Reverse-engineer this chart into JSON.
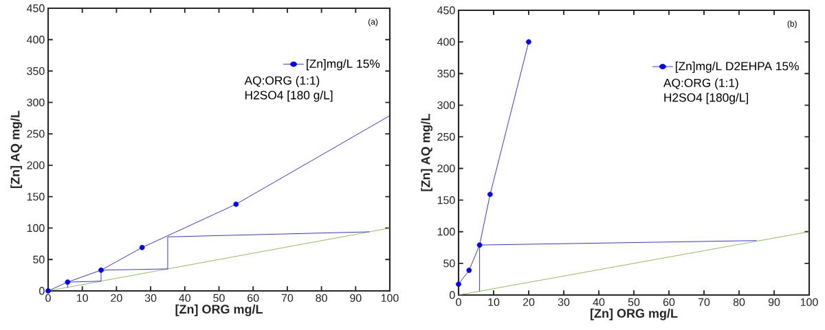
{
  "chart_data": [
    {
      "type": "line",
      "xlabel": "[Zn] ORG mg/L",
      "ylabel": "[Zn] AQ mg/L",
      "xlim": [
        0,
        100
      ],
      "ylim": [
        0,
        450
      ],
      "xticks": [
        0,
        10,
        20,
        30,
        40,
        50,
        60,
        70,
        80,
        90,
        100
      ],
      "yticks": [
        0,
        50,
        100,
        150,
        200,
        250,
        300,
        350,
        400,
        450
      ],
      "marker": "circle",
      "legend": "top right",
      "grid": false,
      "annotations": [
        "(a)",
        "AQ:ORG (1:1)",
        "H2SO4 [180 g/L]"
      ],
      "series": [
        {
          "name": "[Zn]mg/L 15%",
          "color": "#0000ff",
          "x": [
            0,
            5.7,
            15.5,
            27.5,
            55
          ],
          "values": [
            0,
            14,
            33,
            69,
            138
          ]
        },
        {
          "color": "#0000ff",
          "marker": "none",
          "x": [
            55,
            100
          ],
          "values": [
            138,
            279
          ]
        },
        {
          "color": "#77ac30",
          "marker": "none",
          "x": [
            0,
            100
          ],
          "values": [
            0,
            100
          ]
        },
        {
          "color": "#0000ff",
          "marker": "none",
          "x": [
            94,
            35,
            35,
            15.5,
            15.5,
            5.7,
            5.7
          ],
          "values": [
            94,
            86,
            35,
            33,
            15.5,
            14,
            5
          ]
        }
      ]
    },
    {
      "type": "line",
      "xlabel": "[Zn] ORG mg/L",
      "ylabel": "[Zn] AQ mg/L",
      "xlim": [
        0,
        100
      ],
      "ylim": [
        0,
        450
      ],
      "xticks": [
        0,
        10,
        20,
        30,
        40,
        50,
        60,
        70,
        80,
        90,
        100
      ],
      "yticks": [
        0,
        50,
        100,
        150,
        200,
        250,
        300,
        350,
        400,
        450
      ],
      "marker": "circle",
      "legend": "top right",
      "grid": false,
      "annotations": [
        "(b)",
        "AQ:ORG (1:1)",
        "H2SO4 [180g/L]"
      ],
      "series": [
        {
          "name": "[Zn]mg/L D2EHPA 15%",
          "color": "#0000ff",
          "x": [
            0,
            3,
            6,
            9,
            20
          ],
          "values": [
            17,
            39,
            79,
            159,
            400
          ]
        },
        {
          "color": "#77ac30",
          "marker": "none",
          "x": [
            0,
            100
          ],
          "values": [
            0,
            100
          ]
        },
        {
          "color": "#0000ff",
          "marker": "none",
          "x": [
            85,
            6,
            6
          ],
          "values": [
            86,
            79,
            6
          ]
        }
      ]
    }
  ]
}
